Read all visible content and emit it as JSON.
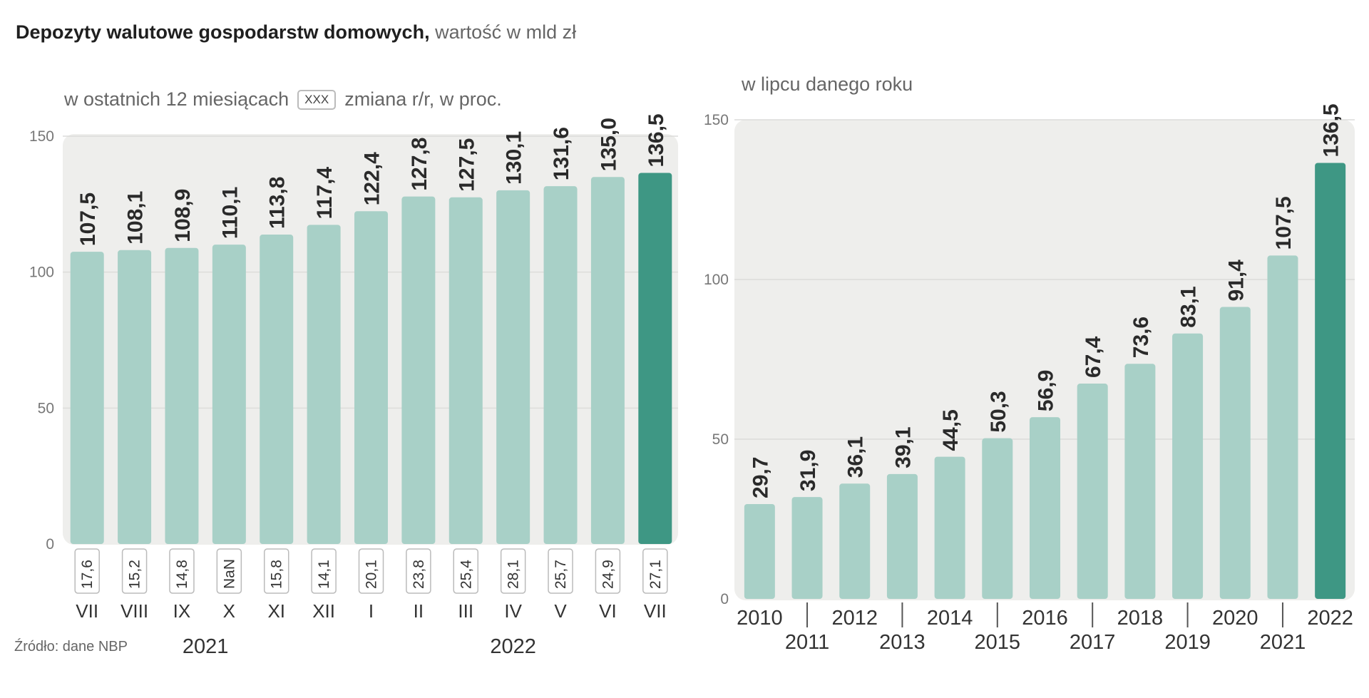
{
  "title": {
    "bold": "Depozyty walutowe gospodarstw domowych,",
    "light": " wartość w mld zł"
  },
  "left_legend": {
    "label": "w ostatnich 12 miesiącach",
    "box": "XXX",
    "box_label": "zmiana r/r, w proc."
  },
  "right_subtitle": "w lipcu danego roku",
  "source": "Źródło: dane NBP",
  "colors": {
    "bar": "#a8d0c7",
    "bar_highlight": "#3e9784",
    "panel_bg": "#eeeeec",
    "grid": "#dcdcda"
  },
  "chart_data": [
    {
      "type": "bar",
      "title": "w ostatnich 12 miesiącach",
      "categories": [
        "VII",
        "VIII",
        "IX",
        "X",
        "XI",
        "XII",
        "I",
        "II",
        "III",
        "IV",
        "V",
        "VI",
        "VII"
      ],
      "values": [
        107.5,
        108.1,
        108.9,
        110.1,
        113.8,
        117.4,
        122.4,
        127.8,
        127.5,
        130.1,
        131.6,
        135.0,
        136.5
      ],
      "value_labels": [
        "107,5",
        "108,1",
        "108,9",
        "110,1",
        "113,8",
        "117,4",
        "122,4",
        "127,8",
        "127,5",
        "130,1",
        "131,6",
        "135,0",
        "136,5"
      ],
      "yoy_change_labels": [
        "17,6",
        "15,2",
        "14,8",
        "NaN",
        "15,8",
        "14,1",
        "20,1",
        "23,8",
        "25,4",
        "28,1",
        "25,7",
        "24,9",
        "27,1"
      ],
      "year_groups": [
        {
          "label": "2021",
          "from": 0,
          "to": 5
        },
        {
          "label": "2022",
          "from": 6,
          "to": 12
        }
      ],
      "highlight_index": 12,
      "yticks": [
        "0",
        "50",
        "100",
        "150"
      ],
      "ylim": [
        0,
        150
      ]
    },
    {
      "type": "bar",
      "title": "w lipcu danego roku",
      "categories": [
        "2010",
        "2011",
        "2012",
        "2013",
        "2014",
        "2015",
        "2016",
        "2017",
        "2018",
        "2019",
        "2020",
        "2021",
        "2022"
      ],
      "values": [
        29.7,
        31.9,
        36.1,
        39.1,
        44.5,
        50.3,
        56.9,
        67.4,
        73.6,
        83.1,
        91.4,
        107.5,
        136.5
      ],
      "value_labels": [
        "29,7",
        "31,9",
        "36,1",
        "39,1",
        "44,5",
        "50,3",
        "56,9",
        "67,4",
        "73,6",
        "83,1",
        "91,4",
        "107,5",
        "136,5"
      ],
      "highlight_index": 12,
      "yticks": [
        "0",
        "50",
        "100",
        "150"
      ],
      "ylim": [
        0,
        150
      ]
    }
  ]
}
